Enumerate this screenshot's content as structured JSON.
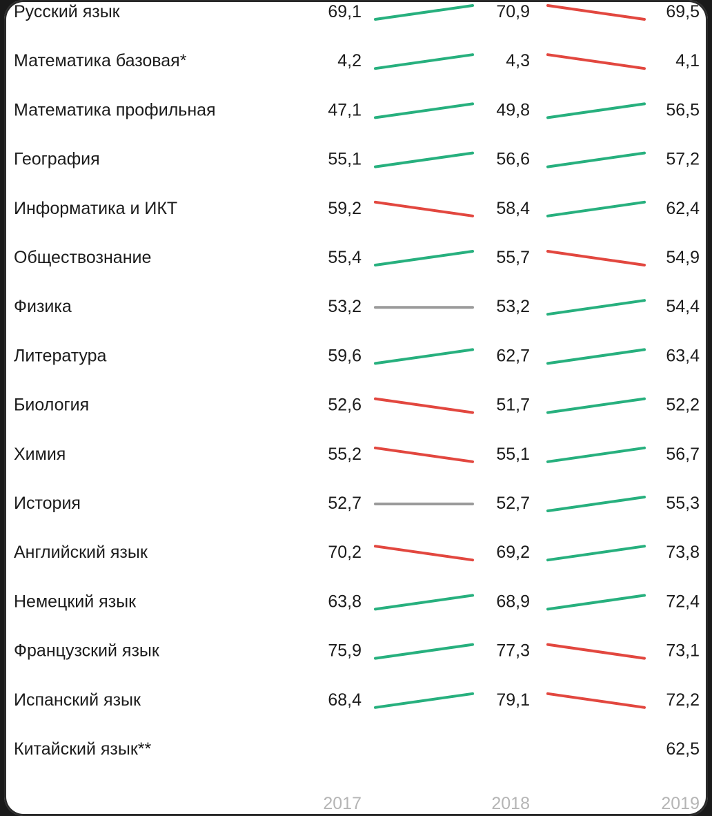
{
  "chart_data": {
    "type": "table",
    "years": [
      "2017",
      "2018",
      "2019"
    ],
    "colors": {
      "up": "#27b07e",
      "down": "#e2473f",
      "flat": "#9a9a9a"
    },
    "rows": [
      {
        "subject": "Русский язык",
        "values": [
          "69,1",
          "70,9",
          "69,5"
        ]
      },
      {
        "subject": "Математика базовая*",
        "values": [
          "4,2",
          "4,3",
          "4,1"
        ]
      },
      {
        "subject": "Математика профильная",
        "values": [
          "47,1",
          "49,8",
          "56,5"
        ]
      },
      {
        "subject": "География",
        "values": [
          "55,1",
          "56,6",
          "57,2"
        ]
      },
      {
        "subject": "Информатика и ИКТ",
        "values": [
          "59,2",
          "58,4",
          "62,4"
        ]
      },
      {
        "subject": "Обществознание",
        "values": [
          "55,4",
          "55,7",
          "54,9"
        ]
      },
      {
        "subject": "Физика",
        "values": [
          "53,2",
          "53,2",
          "54,4"
        ]
      },
      {
        "subject": "Литература",
        "values": [
          "59,6",
          "62,7",
          "63,4"
        ]
      },
      {
        "subject": "Биология",
        "values": [
          "52,6",
          "51,7",
          "52,2"
        ]
      },
      {
        "subject": "Химия",
        "values": [
          "55,2",
          "55,1",
          "56,7"
        ]
      },
      {
        "subject": "История",
        "values": [
          "52,7",
          "52,7",
          "55,3"
        ]
      },
      {
        "subject": "Английский язык",
        "values": [
          "70,2",
          "69,2",
          "73,8"
        ]
      },
      {
        "subject": "Немецкий язык",
        "values": [
          "63,8",
          "68,9",
          "72,4"
        ]
      },
      {
        "subject": "Французский язык",
        "values": [
          "75,9",
          "77,3",
          "73,1"
        ]
      },
      {
        "subject": "Испанский язык",
        "values": [
          "68,4",
          "79,1",
          "72,2"
        ]
      },
      {
        "subject": "Китайский язык**",
        "values": [
          "",
          "",
          "62,5"
        ]
      }
    ]
  }
}
